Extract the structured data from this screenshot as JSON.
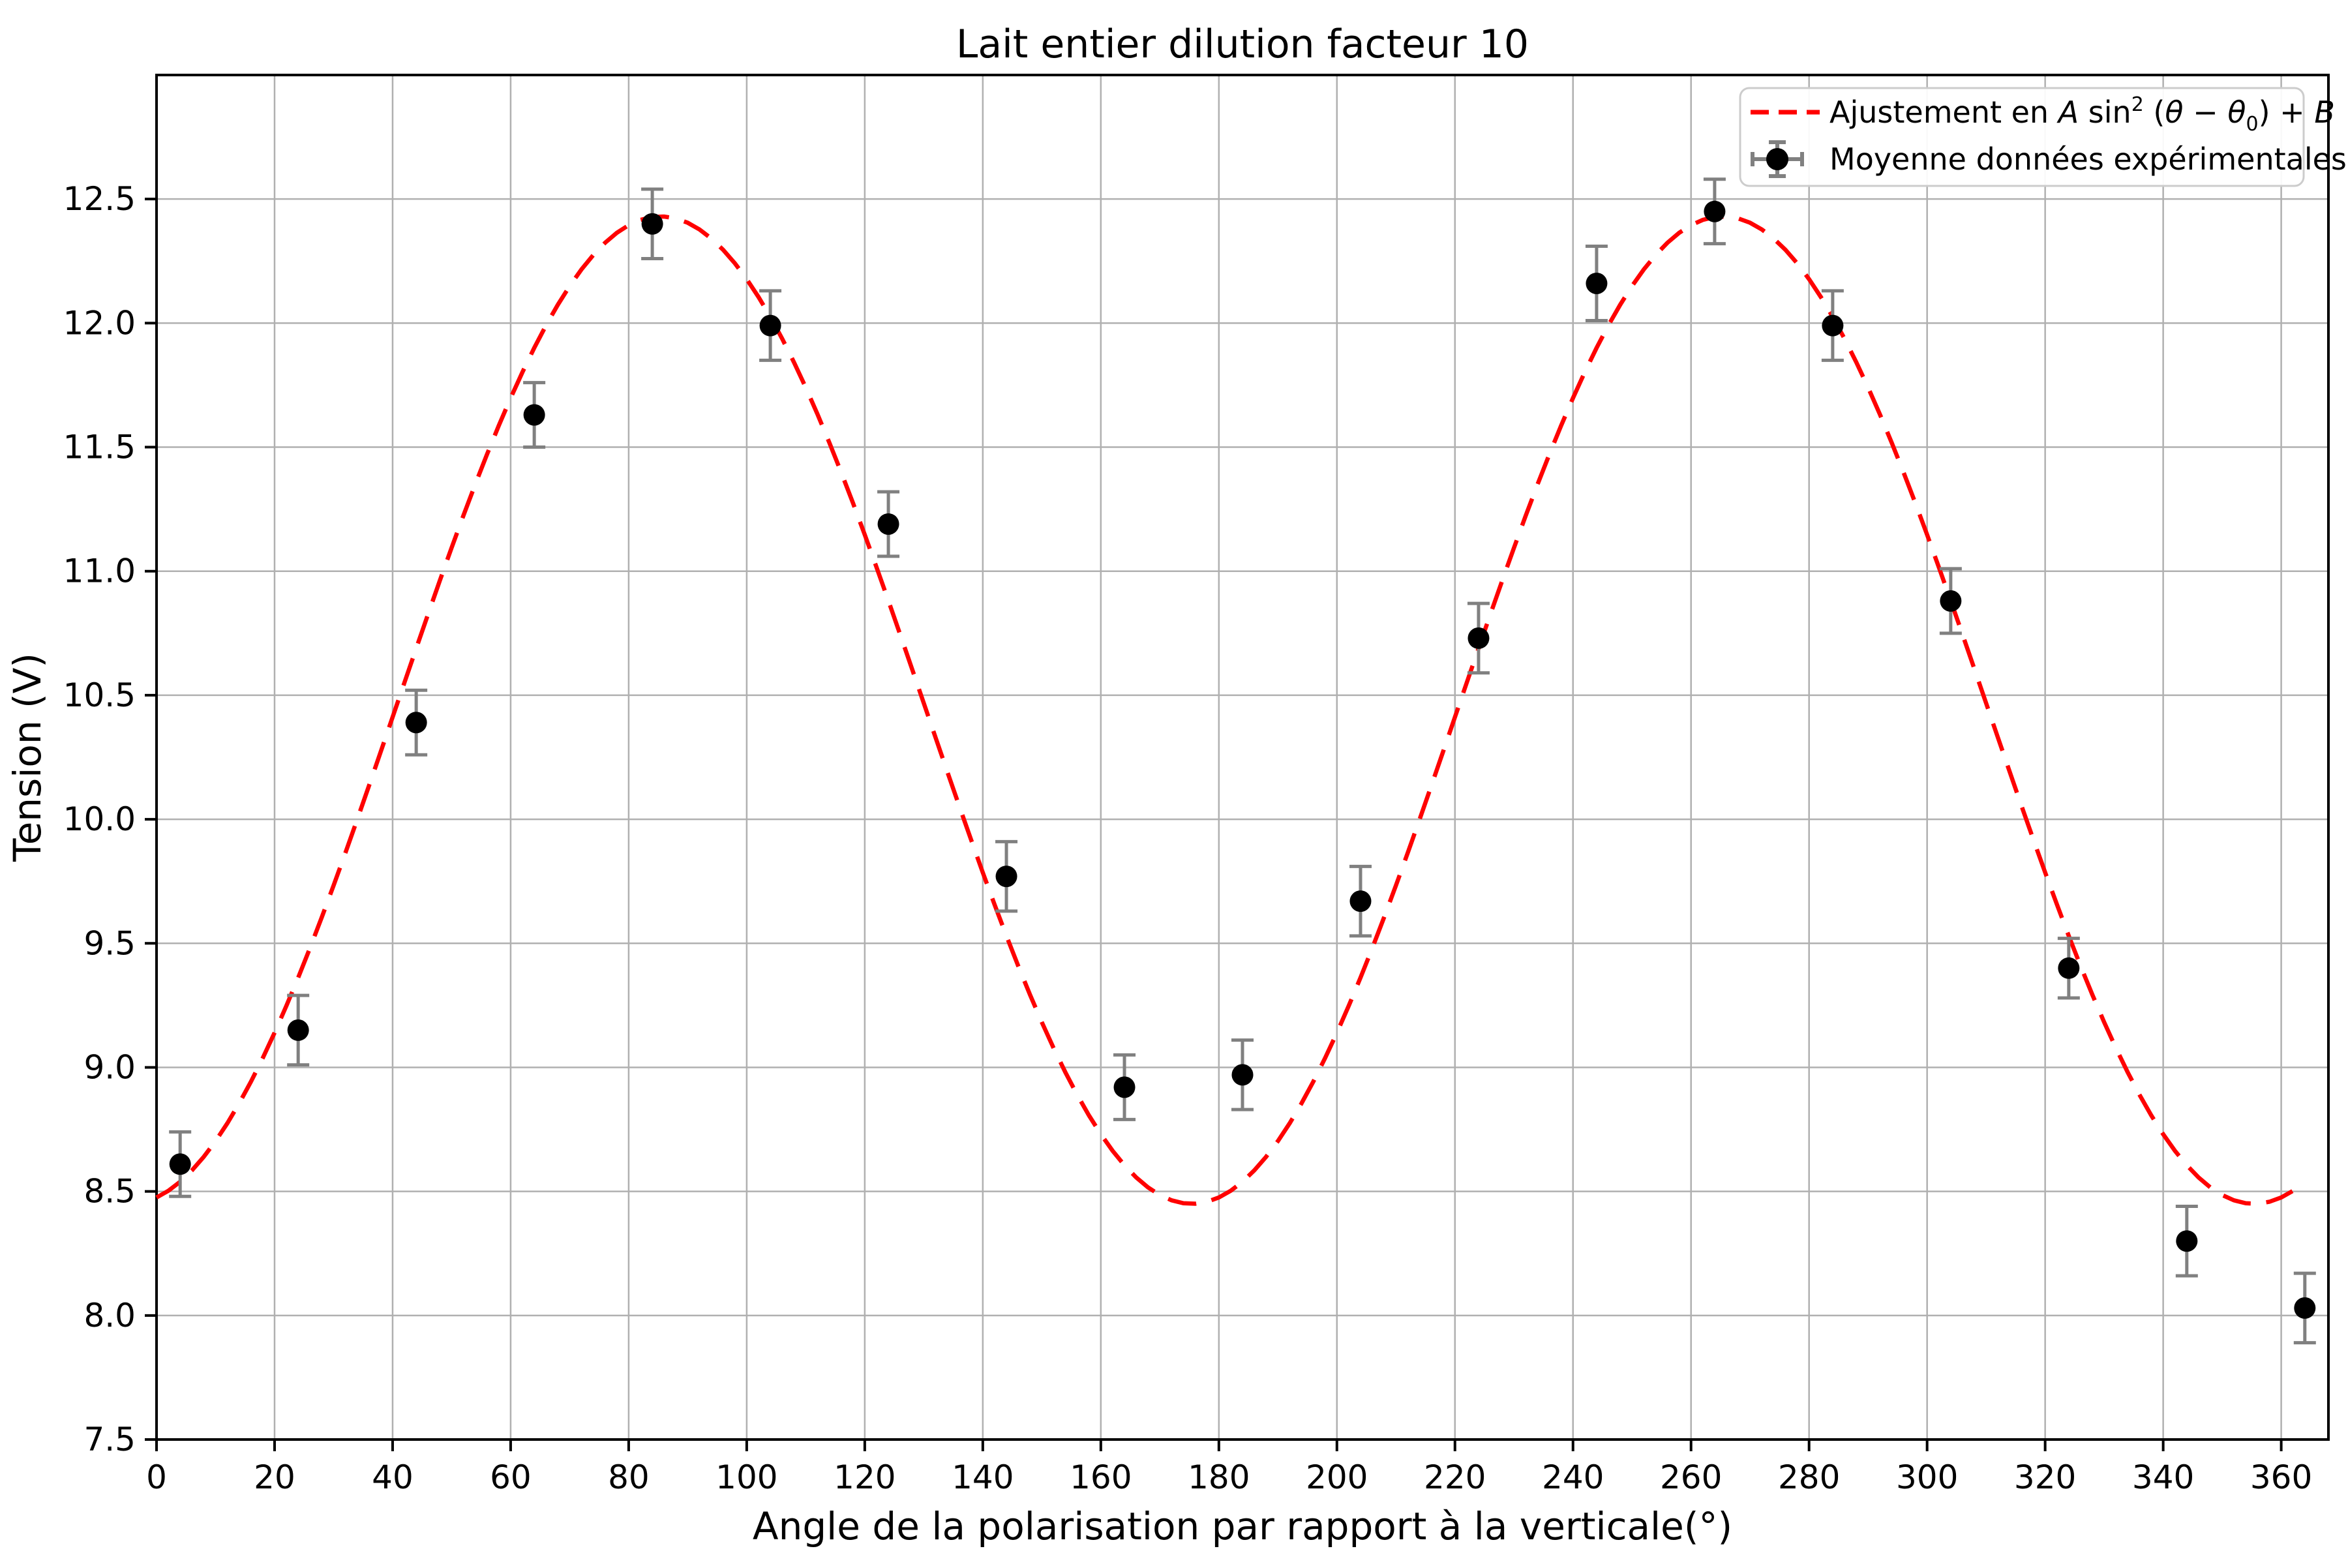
{
  "title": "Lait entier dilution facteur 10",
  "xlabel": "Angle de la polarisation par rapport à la verticale(°)",
  "ylabel": "Tension (V)",
  "legend": {
    "position": "upper right",
    "fit_label_text": "Ajustement en A sin²(θ − θ₀) + B",
    "fit_label_rich": [
      {
        "t": "Ajustement en ",
        "style": "normal"
      },
      {
        "t": "A",
        "style": "italic"
      },
      {
        "t": " sin",
        "style": "normal"
      },
      {
        "t": "2",
        "style": "super"
      },
      {
        "t": " (",
        "style": "normal"
      },
      {
        "t": "θ",
        "style": "italic"
      },
      {
        "t": " − ",
        "style": "normal"
      },
      {
        "t": "θ",
        "style": "italic"
      },
      {
        "t": "0",
        "style": "sub"
      },
      {
        "t": ") + ",
        "style": "normal"
      },
      {
        "t": "B",
        "style": "italic"
      }
    ],
    "data_label": "Moyenne données expérimentales"
  },
  "colors": {
    "fit_line": "#ff0000",
    "marker": "#000000",
    "errorbar": "#808080",
    "grid": "#b0b0b0",
    "spine": "#000000",
    "legend_border": "#cccccc",
    "legend_bg": "#ffffff",
    "text": "#000000"
  },
  "chart_data": {
    "type": "scatter",
    "title": "Lait entier dilution facteur 10",
    "xlabel": "Angle de la polarisation par rapport à la verticale(°)",
    "ylabel": "Tension (V)",
    "xlim": [
      0,
      368
    ],
    "ylim": [
      7.5,
      13.0
    ],
    "xticks": [
      0,
      20,
      40,
      60,
      80,
      100,
      120,
      140,
      160,
      180,
      200,
      220,
      240,
      260,
      280,
      300,
      320,
      340,
      360
    ],
    "yticks": [
      7.5,
      8.0,
      8.5,
      9.0,
      9.5,
      10.0,
      10.5,
      11.0,
      11.5,
      12.0,
      12.5
    ],
    "grid": true,
    "legend_position": "upper right",
    "series": [
      {
        "name": "Moyenne données expérimentales",
        "type": "scatter_errorbar",
        "x": [
          4,
          24,
          44,
          64,
          84,
          104,
          124,
          144,
          164,
          184,
          204,
          224,
          244,
          264,
          284,
          304,
          324,
          344,
          364
        ],
        "y": [
          8.61,
          9.15,
          10.39,
          11.63,
          12.4,
          11.99,
          11.19,
          9.77,
          8.92,
          8.97,
          9.67,
          10.73,
          12.16,
          12.45,
          11.99,
          10.88,
          9.4,
          8.3,
          8.03
        ],
        "yerr": [
          0.13,
          0.14,
          0.13,
          0.13,
          0.14,
          0.14,
          0.13,
          0.14,
          0.13,
          0.14,
          0.14,
          0.14,
          0.15,
          0.13,
          0.14,
          0.13,
          0.12,
          0.14,
          0.14
        ]
      },
      {
        "name": "Ajustement en A sin²(θ − θ₀) + B",
        "type": "line_dashed",
        "fit": {
          "A": 3.98,
          "theta0_deg": -4.6,
          "B": 8.45,
          "x_start": 0,
          "x_end": 364,
          "step": 2
        }
      }
    ]
  }
}
